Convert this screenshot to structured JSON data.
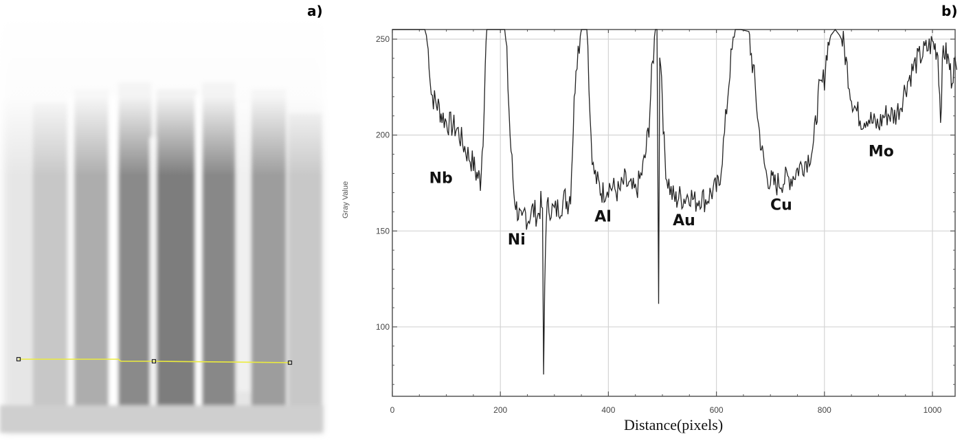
{
  "panels": {
    "a": {
      "label": "a)",
      "description": "grayscale radiograph with 7 vertical metal strips and a yellow line profile selection"
    },
    "b": {
      "label": "b)"
    }
  },
  "chart_data": {
    "type": "line",
    "title": "",
    "xlabel": "Distance(pixels)",
    "ylabel": "Gray Value",
    "xlim": [
      0,
      1045
    ],
    "ylim": [
      64,
      258
    ],
    "xticks": [
      0,
      200,
      400,
      600,
      800,
      1000
    ],
    "yticks": [
      100,
      150,
      200,
      250
    ],
    "grid": true,
    "legend": null,
    "annotations": [
      {
        "text": "Nb",
        "x": 90,
        "y": 175
      },
      {
        "text": "Ni",
        "x": 230,
        "y": 143
      },
      {
        "text": "Al",
        "x": 390,
        "y": 155
      },
      {
        "text": "Au",
        "x": 540,
        "y": 153
      },
      {
        "text": "Cu",
        "x": 720,
        "y": 161
      },
      {
        "text": "Mo",
        "x": 905,
        "y": 189
      }
    ],
    "series": [
      {
        "name": "Gray Value profile",
        "x": [
          0,
          5,
          60,
          63,
          68,
          72,
          78,
          85,
          92,
          100,
          110,
          120,
          130,
          140,
          150,
          155,
          160,
          163,
          168,
          172,
          175,
          205,
          208,
          212,
          218,
          225,
          230,
          235,
          240,
          245,
          250,
          260,
          270,
          275,
          278,
          280,
          282,
          285,
          290,
          300,
          310,
          320,
          325,
          330,
          335,
          340,
          350,
          360,
          362,
          366,
          372,
          380,
          385,
          390,
          400,
          410,
          420,
          430,
          440,
          450,
          460,
          468,
          475,
          480,
          487,
          490,
          493,
          495,
          497,
          500,
          503,
          508,
          512,
          516,
          520,
          525,
          530,
          540,
          550,
          560,
          570,
          580,
          590,
          600,
          605,
          615,
          625,
          635,
          640,
          645,
          660,
          663,
          670,
          678,
          685,
          692,
          700,
          705,
          710,
          720,
          730,
          740,
          750,
          760,
          770,
          780,
          785,
          790,
          800,
          805,
          812,
          820,
          828,
          835,
          842,
          850,
          860,
          870,
          880,
          890,
          900,
          910,
          920,
          930,
          940,
          950,
          960,
          970,
          980,
          990,
          1000,
          1005,
          1010,
          1015,
          1020,
          1025,
          1030,
          1035,
          1040,
          1045
        ],
        "values": [
          255,
          255,
          255,
          252,
          240,
          222,
          218,
          215,
          210,
          207,
          205,
          203,
          196,
          190,
          185,
          180,
          178,
          176,
          200,
          238,
          255,
          255,
          255,
          240,
          200,
          170,
          162,
          158,
          152,
          160,
          156,
          161,
          158,
          164,
          162,
          70,
          120,
          160,
          163,
          160,
          163,
          167,
          165,
          170,
          205,
          238,
          255,
          255,
          248,
          210,
          182,
          175,
          172,
          170,
          174,
          172,
          170,
          176,
          172,
          170,
          178,
          188,
          205,
          230,
          255,
          255,
          112,
          245,
          240,
          220,
          195,
          178,
          175,
          170,
          168,
          166,
          168,
          167,
          170,
          165,
          168,
          166,
          170,
          172,
          175,
          200,
          235,
          255,
          255,
          255,
          254,
          245,
          230,
          205,
          190,
          180,
          176,
          175,
          174,
          176,
          177,
          178,
          182,
          185,
          188,
          195,
          210,
          222,
          230,
          245,
          252,
          255,
          252,
          248,
          235,
          220,
          212,
          208,
          210,
          206,
          205,
          210,
          211,
          210,
          215,
          225,
          232,
          238,
          242,
          245,
          248,
          246,
          243,
          210,
          245,
          242,
          238,
          230,
          236,
          234
        ]
      }
    ]
  }
}
